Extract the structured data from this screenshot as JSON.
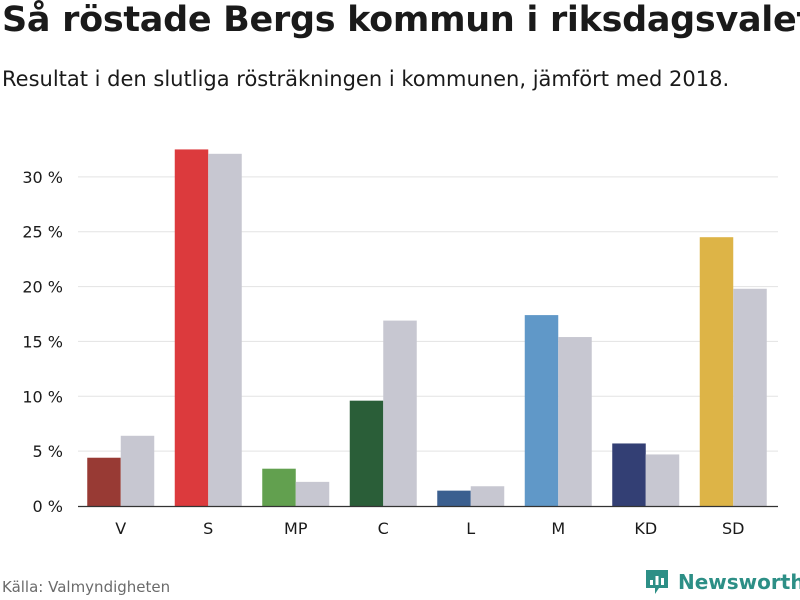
{
  "header": {
    "title": "Så röstade Bergs kommun i riksdagsvalet",
    "subtitle": "Resultat i den slutliga rösträkningen i kommunen, jämfört med 2018."
  },
  "footer": {
    "source": "Källa: Valmyndigheten",
    "brand": "Newsworthy",
    "brand_icon": "newsworthy-logo-icon",
    "brand_color": "#2d8f86"
  },
  "chart_data": {
    "type": "bar",
    "categories": [
      "V",
      "S",
      "MP",
      "C",
      "L",
      "M",
      "KD",
      "SD"
    ],
    "series": [
      {
        "values": [
          4.4,
          32.5,
          3.4,
          9.6,
          1.4,
          17.4,
          5.7,
          24.5
        ],
        "colors": [
          "#983a34",
          "#dc3a3d",
          "#62a04f",
          "#2a5e38",
          "#3b5f8f",
          "#6098c8",
          "#333f74",
          "#ddb447"
        ]
      },
      {
        "values": [
          6.4,
          32.1,
          2.2,
          16.9,
          1.8,
          15.4,
          4.7,
          19.8
        ],
        "colors": [
          "#c7c7d1",
          "#c7c7d1",
          "#c7c7d1",
          "#c7c7d1",
          "#c7c7d1",
          "#c7c7d1",
          "#c7c7d1",
          "#c7c7d1"
        ]
      }
    ],
    "y_ticks": [
      "0 %",
      "5 %",
      "10 %",
      "15 %",
      "20 %",
      "25 %",
      "30 %"
    ],
    "ylim": [
      0,
      35
    ],
    "grid": true,
    "legend": "none",
    "grid_color": "#e3e3e3",
    "axis_color": "#333333"
  }
}
